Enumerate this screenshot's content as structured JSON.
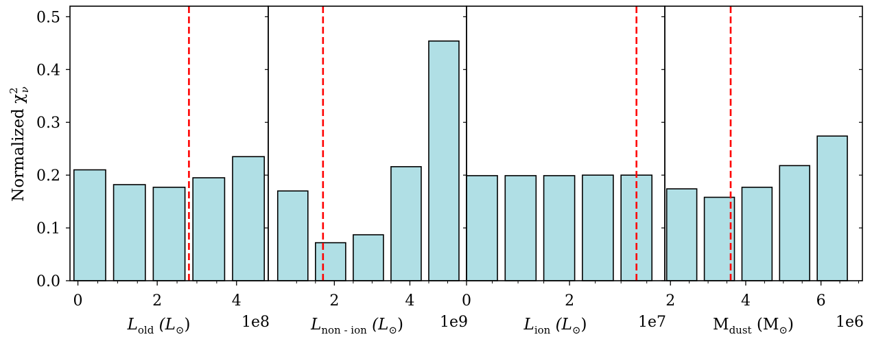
{
  "figure": {
    "ylabel": "Normalized χ²_ν",
    "ylabel_main": "Normalized χ",
    "ylabel_sup": "2",
    "ylabel_sub": "ν"
  },
  "chart_data": [
    {
      "type": "bar",
      "xlabel": "L_old (L_⊙)",
      "xlabel_base": "L",
      "xlabel_sub": "old",
      "xlabel_unit_open": "(L",
      "xlabel_unit_sub": "⊙",
      "xlabel_unit_close": ")",
      "offset_text": "1e8",
      "x": [
        0.3,
        1.3,
        2.3,
        3.3,
        4.3
      ],
      "values": [
        0.21,
        0.182,
        0.177,
        0.195,
        0.235
      ],
      "bar_width": 0.8,
      "xlim": [
        -0.2,
        4.8
      ],
      "ylim": [
        0,
        0.52
      ],
      "xticks": [
        0,
        2,
        4
      ],
      "xtick_labels": [
        "0",
        "2",
        "4"
      ],
      "minor_xticks": [
        0.5,
        1,
        1.5,
        2.5,
        3,
        3.5
      ],
      "ref_line_x": 2.8
    },
    {
      "type": "bar",
      "xlabel": "L_non-ion (L_⊙)",
      "xlabel_base": "L",
      "xlabel_sub": "non - ion",
      "xlabel_unit_open": "(L",
      "xlabel_unit_sub": "⊙",
      "xlabel_unit_close": ")",
      "offset_text": "1e9",
      "x": [
        0.9,
        1.9,
        2.9,
        3.9,
        4.9
      ],
      "values": [
        0.17,
        0.072,
        0.087,
        0.216,
        0.454
      ],
      "bar_width": 0.8,
      "xlim": [
        0.25,
        5.5
      ],
      "ylim": [
        0,
        0.52
      ],
      "xticks": [
        2,
        4
      ],
      "xtick_labels": [
        "2",
        "4"
      ],
      "minor_xticks": [
        1,
        1.5,
        2.5,
        3,
        3.5,
        4.5,
        5
      ],
      "ref_line_x": 1.7
    },
    {
      "type": "bar",
      "xlabel": "L_ion (L_⊙)",
      "xlabel_base": "L",
      "xlabel_sub": "ion",
      "xlabel_unit_open": "(L",
      "xlabel_unit_sub": "⊙",
      "xlabel_unit_close": ")",
      "offset_text": "1e7",
      "x": [
        0.3,
        1.05,
        1.8,
        2.55,
        3.3
      ],
      "values": [
        0.199,
        0.199,
        0.199,
        0.2,
        0.2
      ],
      "bar_width": 0.6,
      "xlim": [
        0.0,
        3.85
      ],
      "ylim": [
        0,
        0.52
      ],
      "xticks": [
        0,
        2
      ],
      "xtick_labels": [
        "0",
        "2"
      ],
      "minor_xticks": [
        0.5,
        1,
        1.5,
        2.5,
        3,
        3.5
      ],
      "ref_line_x": 3.3
    },
    {
      "type": "bar",
      "xlabel": "M_dust (M_⊙)",
      "xlabel_base": "M",
      "xlabel_sub": "dust",
      "xlabel_unit_open": "(M",
      "xlabel_unit_sub": "⊙",
      "xlabel_unit_close": ")",
      "offset_text": "1e6",
      "x": [
        2.3,
        3.3,
        4.3,
        5.3,
        6.3
      ],
      "values": [
        0.174,
        0.158,
        0.177,
        0.218,
        0.274
      ],
      "bar_width": 0.8,
      "xlim": [
        1.85,
        7.1
      ],
      "ylim": [
        0,
        0.52
      ],
      "xticks": [
        2,
        4,
        6
      ],
      "xtick_labels": [
        "2",
        "4",
        "6"
      ],
      "minor_xticks": [
        2.5,
        3,
        3.5,
        4.5,
        5,
        5.5,
        6.5,
        7
      ],
      "ref_line_x": 3.6
    }
  ],
  "y_axis": {
    "ticks": [
      0.0,
      0.1,
      0.2,
      0.3,
      0.4,
      0.5
    ],
    "tick_labels": [
      "0.0",
      "0.1",
      "0.2",
      "0.3",
      "0.4",
      "0.5"
    ]
  },
  "colors": {
    "bar_fill": "#b0dfe5",
    "bar_edge": "#000000",
    "ref_line": "#ff0000",
    "axes": "#000000"
  }
}
